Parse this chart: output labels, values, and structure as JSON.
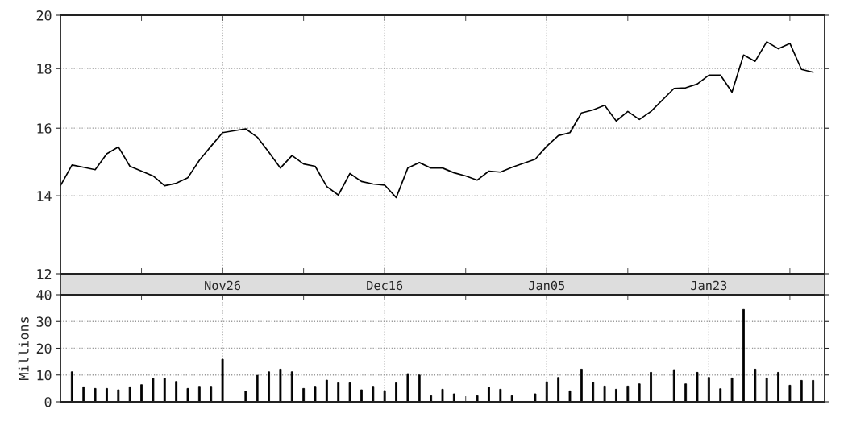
{
  "chart_data": [
    {
      "type": "line",
      "categories": [
        null,
        null,
        null,
        null,
        null,
        null,
        null,
        null,
        null,
        null,
        null,
        null,
        null,
        null,
        "Nov26",
        null,
        null,
        null,
        null,
        null,
        null,
        null,
        null,
        null,
        null,
        null,
        null,
        null,
        "Dec16",
        null,
        null,
        null,
        null,
        null,
        null,
        null,
        null,
        null,
        null,
        null,
        null,
        null,
        "Jan05",
        null,
        null,
        null,
        null,
        null,
        null,
        null,
        null,
        null,
        null,
        null,
        null,
        null,
        "Jan23",
        null,
        null,
        null,
        null,
        null,
        null,
        null,
        null,
        null
      ],
      "series": [
        {
          "color": "#000000",
          "values": [
            14.28,
            14.88,
            14.81,
            14.74,
            15.21,
            15.42,
            14.84,
            14.7,
            14.56,
            14.28,
            14.35,
            14.51,
            15.02,
            15.44,
            15.86,
            null,
            15.98,
            15.72,
            15.26,
            14.79,
            15.16,
            14.91,
            14.84,
            14.26,
            14.02,
            14.63,
            14.4,
            14.33,
            14.3,
            13.95,
            14.79,
            14.95,
            14.79,
            14.79,
            14.65,
            14.56,
            14.44,
            14.7,
            14.67,
            14.81,
            null,
            15.05,
            15.44,
            15.77,
            15.86,
            16.49,
            16.59,
            16.74,
            16.23,
            16.54,
            16.28,
            16.54,
            null,
            17.31,
            17.33,
            17.46,
            17.77,
            17.77,
            17.18,
            18.49,
            18.26,
            18.98,
            18.72,
            18.92,
            17.97,
            17.87
          ]
        }
      ],
      "ylim": [
        12,
        20
      ],
      "yticks": [
        12,
        14,
        16,
        18,
        20
      ],
      "log": "y",
      "grid": true
    },
    {
      "type": "bar",
      "categories": [
        null,
        null,
        null,
        null,
        null,
        null,
        null,
        null,
        null,
        null,
        null,
        null,
        null,
        null,
        null,
        null,
        null,
        null,
        null,
        null,
        null,
        null,
        null,
        null,
        null,
        null,
        null,
        null,
        null,
        null,
        null,
        null,
        null,
        null,
        null,
        null,
        null,
        null,
        null,
        null,
        null,
        null,
        null,
        null,
        null,
        null,
        null,
        null,
        null,
        null,
        null,
        null,
        null,
        null,
        null,
        null,
        null,
        null,
        null,
        null,
        null,
        null,
        null,
        null,
        null,
        null
      ],
      "series": [
        {
          "color": "#000000",
          "values": [
            null,
            11.2,
            5.6,
            5.0,
            5.0,
            4.5,
            5.6,
            6.4,
            8.7,
            8.7,
            7.6,
            5.0,
            5.8,
            5.8,
            15.9,
            null,
            4.0,
            9.9,
            11.2,
            12.2,
            11.2,
            5.0,
            5.8,
            8.1,
            7.1,
            7.1,
            4.5,
            5.8,
            4.2,
            7.1,
            10.5,
            10.0,
            2.3,
            4.7,
            3.0,
            null,
            2.3,
            5.4,
            4.7,
            2.3,
            null,
            3.0,
            7.5,
            9.1,
            4.1,
            12.2,
            7.2,
            5.9,
            4.7,
            5.9,
            6.7,
            11.0,
            null,
            12.0,
            6.7,
            11.0,
            9.1,
            4.9,
            8.9,
            34.5,
            12.2,
            8.9,
            11.0,
            6.2,
            8.0,
            8.0
          ]
        }
      ],
      "ylabel": "Millions",
      "ylim": [
        0,
        40
      ],
      "yticks": [
        0,
        10,
        20,
        30,
        40
      ],
      "grid": true
    }
  ]
}
